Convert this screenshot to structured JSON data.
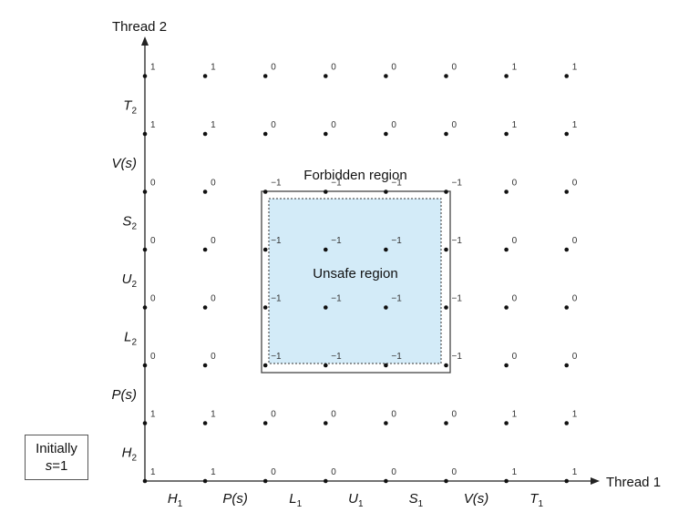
{
  "diagram": {
    "type": "progress-graph",
    "x_axis_title": "Thread 1",
    "y_axis_title": "Thread 2",
    "x_labels": [
      {
        "main": "H",
        "sub": "1"
      },
      {
        "main": "P(s)",
        "sub": ""
      },
      {
        "main": "L",
        "sub": "1"
      },
      {
        "main": "U",
        "sub": "1"
      },
      {
        "main": "S",
        "sub": "1"
      },
      {
        "main": "V(s)",
        "sub": ""
      },
      {
        "main": "T",
        "sub": "1"
      }
    ],
    "y_labels": [
      {
        "main": "H",
        "sub": "2"
      },
      {
        "main": "P(s)",
        "sub": ""
      },
      {
        "main": "L",
        "sub": "2"
      },
      {
        "main": "U",
        "sub": "2"
      },
      {
        "main": "S",
        "sub": "2"
      },
      {
        "main": "V(s)",
        "sub": ""
      },
      {
        "main": "T",
        "sub": "2"
      }
    ],
    "semaphore_values_rows_bottom_to_top": [
      [
        "1",
        "1",
        "0",
        "0",
        "0",
        "0",
        "1",
        "1"
      ],
      [
        "1",
        "1",
        "0",
        "0",
        "0",
        "0",
        "1",
        "1"
      ],
      [
        "0",
        "0",
        "−1",
        "−1",
        "−1",
        "−1",
        "0",
        "0"
      ],
      [
        "0",
        "0",
        "−1",
        "−1",
        "−1",
        "−1",
        "0",
        "0"
      ],
      [
        "0",
        "0",
        "−1",
        "−1",
        "−1",
        "−1",
        "0",
        "0"
      ],
      [
        "0",
        "0",
        "−1",
        "−1",
        "−1",
        "−1",
        "0",
        "0"
      ],
      [
        "1",
        "1",
        "0",
        "0",
        "0",
        "0",
        "1",
        "1"
      ],
      [
        "1",
        "1",
        "0",
        "0",
        "0",
        "0",
        "1",
        "1"
      ]
    ],
    "forbidden_region_label": "Forbidden region",
    "unsafe_region_label": "Unsafe region",
    "unsafe_fill_color": "#d3ebf8",
    "initial_box": {
      "line1": "Initially",
      "var": "s",
      "eq": "=1"
    }
  }
}
